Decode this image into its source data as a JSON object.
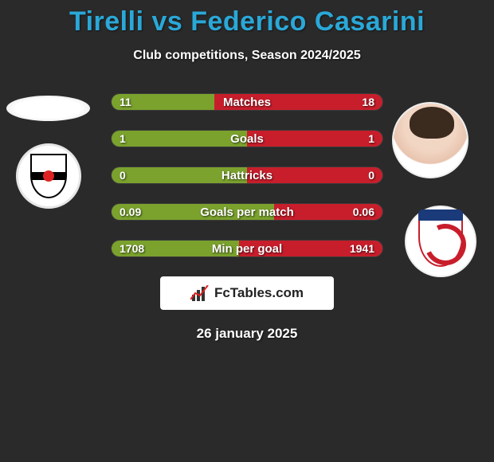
{
  "title": "Tirelli vs Federico Casarini",
  "subtitle": "Club competitions, Season 2024/2025",
  "logo_text": "FcTables.com",
  "date": "26 january 2025",
  "colors": {
    "title": "#2aa8d8",
    "bar_left": "#7aa22d",
    "bar_right": "#c81e2b",
    "bg": "#2a2a2a",
    "text": "#ffffff"
  },
  "rows": [
    {
      "label": "Matches",
      "left_value": "11",
      "right_value": "18",
      "left_pct": 38,
      "right_pct": 62
    },
    {
      "label": "Goals",
      "left_value": "1",
      "right_value": "1",
      "left_pct": 50,
      "right_pct": 50
    },
    {
      "label": "Hattricks",
      "left_value": "0",
      "right_value": "0",
      "left_pct": 50,
      "right_pct": 50
    },
    {
      "label": "Goals per match",
      "left_value": "0.09",
      "right_value": "0.06",
      "left_pct": 60,
      "right_pct": 40
    },
    {
      "label": "Min per goal",
      "left_value": "1708",
      "right_value": "1941",
      "left_pct": 47,
      "right_pct": 53
    }
  ]
}
